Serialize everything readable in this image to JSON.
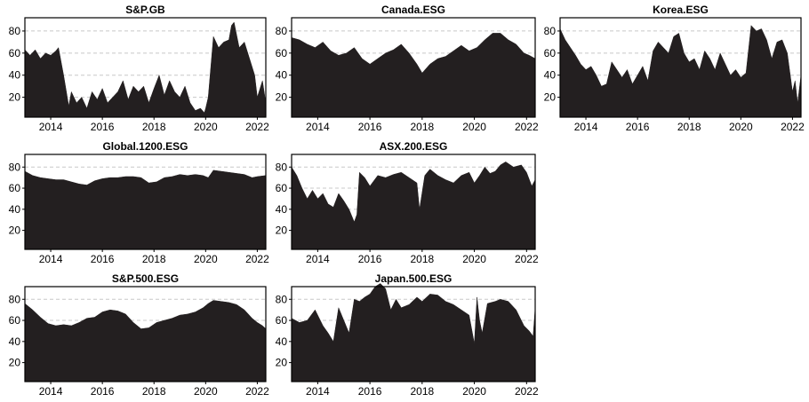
{
  "chart_data": [
    {
      "type": "area",
      "title": "S&P.GB",
      "xlim": [
        2013.0,
        2022.33
      ],
      "ylim": [
        2,
        92
      ],
      "xticks": [
        "2014",
        "2016",
        "2018",
        "2020",
        "2022"
      ],
      "yticks": [
        "20",
        "40",
        "60",
        "80"
      ],
      "grid": "horizontal dashed",
      "x": [
        2013.0,
        2013.2,
        2013.4,
        2013.6,
        2013.8,
        2014.0,
        2014.2,
        2014.3,
        2014.5,
        2014.7,
        2014.8,
        2015.0,
        2015.2,
        2015.4,
        2015.6,
        2015.8,
        2016.0,
        2016.2,
        2016.4,
        2016.6,
        2016.8,
        2017.0,
        2017.2,
        2017.4,
        2017.6,
        2017.8,
        2018.0,
        2018.2,
        2018.4,
        2018.6,
        2018.8,
        2019.0,
        2019.2,
        2019.4,
        2019.6,
        2019.8,
        2019.95,
        2020.0,
        2020.1,
        2020.3,
        2020.5,
        2020.7,
        2020.9,
        2021.0,
        2021.1,
        2021.3,
        2021.5,
        2021.7,
        2021.9,
        2022.0,
        2022.2,
        2022.33
      ],
      "y": [
        63,
        58,
        63,
        55,
        60,
        58,
        62,
        65,
        40,
        12,
        25,
        15,
        20,
        10,
        25,
        18,
        28,
        15,
        20,
        25,
        35,
        18,
        30,
        25,
        30,
        15,
        28,
        40,
        22,
        35,
        25,
        20,
        30,
        15,
        8,
        10,
        6,
        10,
        20,
        75,
        65,
        70,
        72,
        85,
        88,
        65,
        70,
        55,
        40,
        20,
        35,
        15
      ]
    },
    {
      "type": "area",
      "title": "Canada.ESG",
      "xlim": [
        2013.0,
        2022.33
      ],
      "ylim": [
        2,
        92
      ],
      "xticks": [
        "2014",
        "2016",
        "2018",
        "2020",
        "2022"
      ],
      "yticks": [
        "20",
        "40",
        "60",
        "80"
      ],
      "grid": "horizontal dashed",
      "x": [
        2013.0,
        2013.3,
        2013.6,
        2013.9,
        2014.2,
        2014.5,
        2014.8,
        2015.1,
        2015.4,
        2015.7,
        2016.0,
        2016.3,
        2016.6,
        2016.9,
        2017.2,
        2017.5,
        2017.8,
        2018.0,
        2018.3,
        2018.6,
        2018.9,
        2019.2,
        2019.5,
        2019.8,
        2020.1,
        2020.4,
        2020.7,
        2021.0,
        2021.3,
        2021.6,
        2021.9,
        2022.1,
        2022.33
      ],
      "y": [
        74,
        72,
        68,
        65,
        70,
        62,
        58,
        60,
        65,
        55,
        50,
        55,
        60,
        63,
        68,
        60,
        50,
        42,
        50,
        55,
        57,
        62,
        67,
        62,
        65,
        72,
        78,
        78,
        72,
        68,
        60,
        58,
        55
      ]
    },
    {
      "type": "area",
      "title": "Korea.ESG",
      "xlim": [
        2013.0,
        2022.33
      ],
      "ylim": [
        2,
        92
      ],
      "xticks": [
        "2014",
        "2016",
        "2018",
        "2020",
        "2022"
      ],
      "yticks": [
        "20",
        "40",
        "60",
        "80"
      ],
      "grid": "horizontal dashed",
      "x": [
        2013.0,
        2013.2,
        2013.4,
        2013.6,
        2013.8,
        2014.0,
        2014.2,
        2014.4,
        2014.6,
        2014.8,
        2015.0,
        2015.2,
        2015.4,
        2015.6,
        2015.8,
        2016.0,
        2016.2,
        2016.4,
        2016.6,
        2016.8,
        2017.0,
        2017.2,
        2017.4,
        2017.6,
        2017.8,
        2018.0,
        2018.2,
        2018.4,
        2018.6,
        2018.8,
        2019.0,
        2019.2,
        2019.4,
        2019.6,
        2019.8,
        2020.0,
        2020.2,
        2020.4,
        2020.6,
        2020.8,
        2021.0,
        2021.2,
        2021.4,
        2021.6,
        2021.8,
        2022.0,
        2022.1,
        2022.2,
        2022.33
      ],
      "y": [
        82,
        72,
        65,
        58,
        50,
        45,
        48,
        40,
        30,
        32,
        52,
        45,
        38,
        45,
        32,
        40,
        48,
        35,
        62,
        70,
        65,
        60,
        75,
        78,
        60,
        52,
        55,
        45,
        62,
        55,
        45,
        60,
        50,
        40,
        45,
        38,
        42,
        85,
        80,
        82,
        72,
        55,
        70,
        72,
        60,
        25,
        35,
        15,
        40
      ]
    },
    {
      "type": "area",
      "title": "Global.1200.ESG",
      "xlim": [
        2013.0,
        2022.33
      ],
      "ylim": [
        2,
        92
      ],
      "xticks": [
        "2014",
        "2016",
        "2018",
        "2020",
        "2022"
      ],
      "yticks": [
        "20",
        "40",
        "60",
        "80"
      ],
      "grid": "horizontal dashed",
      "x": [
        2013.0,
        2013.3,
        2013.6,
        2013.9,
        2014.2,
        2014.5,
        2014.8,
        2015.1,
        2015.4,
        2015.7,
        2016.0,
        2016.3,
        2016.6,
        2016.9,
        2017.2,
        2017.5,
        2017.8,
        2018.1,
        2018.4,
        2018.7,
        2019.0,
        2019.3,
        2019.6,
        2019.9,
        2020.1,
        2020.3,
        2020.6,
        2020.9,
        2021.2,
        2021.5,
        2021.8,
        2022.0,
        2022.33
      ],
      "y": [
        76,
        72,
        70,
        69,
        68,
        68,
        66,
        64,
        63,
        67,
        69,
        70,
        70,
        71,
        71,
        70,
        65,
        66,
        70,
        71,
        73,
        72,
        73,
        72,
        70,
        77,
        76,
        75,
        74,
        73,
        70,
        71,
        72
      ]
    },
    {
      "type": "area",
      "title": "ASX.200.ESG",
      "xlim": [
        2013.0,
        2022.33
      ],
      "ylim": [
        2,
        92
      ],
      "xticks": [
        "2014",
        "2016",
        "2018",
        "2020",
        "2022"
      ],
      "yticks": [
        "20",
        "40",
        "60",
        "80"
      ],
      "grid": "horizontal dashed",
      "x": [
        2013.0,
        2013.2,
        2013.4,
        2013.6,
        2013.8,
        2014.0,
        2014.2,
        2014.4,
        2014.6,
        2014.8,
        2015.0,
        2015.2,
        2015.4,
        2015.5,
        2015.6,
        2015.8,
        2016.0,
        2016.3,
        2016.6,
        2016.9,
        2017.2,
        2017.5,
        2017.8,
        2017.9,
        2018.1,
        2018.3,
        2018.6,
        2018.9,
        2019.2,
        2019.5,
        2019.8,
        2020.0,
        2020.2,
        2020.4,
        2020.6,
        2020.8,
        2021.0,
        2021.2,
        2021.5,
        2021.8,
        2022.0,
        2022.2,
        2022.33
      ],
      "y": [
        80,
        72,
        60,
        50,
        58,
        50,
        55,
        45,
        42,
        55,
        48,
        40,
        28,
        35,
        75,
        70,
        62,
        72,
        70,
        73,
        75,
        70,
        65,
        40,
        72,
        78,
        72,
        68,
        65,
        72,
        75,
        65,
        72,
        80,
        74,
        76,
        82,
        85,
        80,
        82,
        75,
        62,
        68
      ]
    },
    {
      "type": "area",
      "title": "S&P.500.ESG",
      "xlim": [
        2013.0,
        2022.33
      ],
      "ylim": [
        2,
        92
      ],
      "xticks": [
        "2014",
        "2016",
        "2018",
        "2020",
        "2022"
      ],
      "yticks": [
        "20",
        "40",
        "60",
        "80"
      ],
      "grid": "horizontal dashed",
      "x": [
        2013.0,
        2013.3,
        2013.6,
        2013.9,
        2014.2,
        2014.5,
        2014.8,
        2015.1,
        2015.4,
        2015.7,
        2016.0,
        2016.3,
        2016.6,
        2016.9,
        2017.2,
        2017.5,
        2017.8,
        2018.1,
        2018.4,
        2018.7,
        2019.0,
        2019.3,
        2019.6,
        2019.9,
        2020.1,
        2020.3,
        2020.6,
        2020.9,
        2021.2,
        2021.5,
        2021.8,
        2022.0,
        2022.2,
        2022.33
      ],
      "y": [
        76,
        70,
        63,
        57,
        55,
        56,
        55,
        58,
        62,
        63,
        68,
        70,
        69,
        66,
        58,
        52,
        53,
        58,
        60,
        62,
        65,
        66,
        68,
        72,
        76,
        79,
        78,
        77,
        75,
        70,
        62,
        58,
        55,
        52
      ]
    },
    {
      "type": "area",
      "title": "Japan.500.ESG",
      "xlim": [
        2013.0,
        2022.33
      ],
      "ylim": [
        2,
        92
      ],
      "xticks": [
        "2014",
        "2016",
        "2018",
        "2020",
        "2022"
      ],
      "yticks": [
        "20",
        "40",
        "60",
        "80"
      ],
      "grid": "horizontal dashed",
      "x": [
        2013.0,
        2013.3,
        2013.6,
        2013.9,
        2014.2,
        2014.4,
        2014.6,
        2014.8,
        2015.0,
        2015.2,
        2015.4,
        2015.6,
        2015.8,
        2016.0,
        2016.2,
        2016.4,
        2016.6,
        2016.8,
        2017.0,
        2017.2,
        2017.5,
        2017.8,
        2018.0,
        2018.3,
        2018.6,
        2018.9,
        2019.2,
        2019.5,
        2019.8,
        2020.0,
        2020.1,
        2020.2,
        2020.3,
        2020.5,
        2020.8,
        2021.0,
        2021.3,
        2021.6,
        2021.9,
        2022.1,
        2022.25,
        2022.33
      ],
      "y": [
        62,
        58,
        60,
        70,
        55,
        48,
        40,
        72,
        60,
        48,
        80,
        78,
        82,
        85,
        92,
        95,
        90,
        70,
        80,
        72,
        75,
        82,
        78,
        85,
        84,
        78,
        75,
        70,
        65,
        38,
        82,
        60,
        48,
        76,
        78,
        80,
        78,
        70,
        55,
        50,
        45,
        72
      ]
    }
  ]
}
